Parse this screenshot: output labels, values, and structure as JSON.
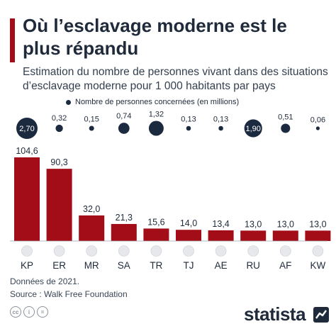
{
  "title": "Où l’esclavage moderne est le plus répandu",
  "subtitle": "Estimation du nombre de personnes vivant dans des situations d’esclavage moderne pour 1 000 habitants par pays",
  "legend_label": "Nombre de personnes concernées (en millions)",
  "footer": {
    "date_note": "Données de 2021.",
    "source": "Source : Walk Free Foundation",
    "brand": "statista"
  },
  "colors": {
    "bar": "#a30d17",
    "bubble": "#1c2a40",
    "title_accent": "#a30d17"
  },
  "chart_data": {
    "type": "bar",
    "categories": [
      "KP",
      "ER",
      "MR",
      "SA",
      "TR",
      "TJ",
      "AE",
      "RU",
      "AF",
      "KW"
    ],
    "values": [
      104.6,
      90.3,
      32.0,
      21.3,
      15.6,
      14.0,
      13.4,
      13.0,
      13.0,
      13.0
    ],
    "value_labels": [
      "104,6",
      "90,3",
      "32,0",
      "21,3",
      "15,6",
      "14,0",
      "13,4",
      "13,0",
      "13,0",
      "13,0"
    ],
    "series": [
      {
        "values": [
          104.6,
          90.3,
          32.0,
          21.3,
          15.6,
          14.0,
          13.4,
          13.0,
          13.0,
          13.0
        ]
      },
      {
        "name": "Nombre de personnes concernées (en millions)",
        "values": [
          2.7,
          0.32,
          0.15,
          0.74,
          1.32,
          0.13,
          0.13,
          1.9,
          0.51,
          0.06
        ],
        "labels": [
          "2,70",
          "0,32",
          "0,15",
          "0,74",
          "1,32",
          "0,13",
          "0,13",
          "1,90",
          "0,51",
          "0,06"
        ]
      }
    ],
    "flags": [
      "flag-north-korea-icon",
      "flag-eritrea-icon",
      "flag-mauritania-icon",
      "flag-saudi-arabia-icon",
      "flag-turkey-icon",
      "flag-tajikistan-icon",
      "flag-uae-icon",
      "flag-russia-icon",
      "flag-afghanistan-icon",
      "flag-kuwait-icon"
    ],
    "ylim": [
      0,
      104.6
    ],
    "grid": false,
    "legend_position": "top"
  }
}
